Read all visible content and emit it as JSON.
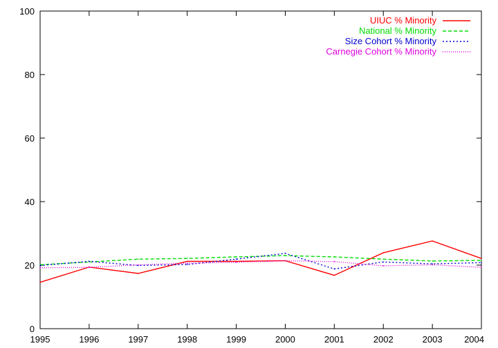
{
  "chart_data": {
    "type": "line",
    "title": "",
    "xlabel": "",
    "ylabel": "",
    "x": [
      1995,
      1996,
      1997,
      1998,
      1999,
      2000,
      2001,
      2002,
      2003,
      2004
    ],
    "xlim": [
      1995,
      2004
    ],
    "ylim": [
      0,
      100
    ],
    "x_ticks": [
      "1995",
      "1996",
      "1997",
      "1998",
      "1999",
      "2000",
      "2001",
      "2002",
      "2003",
      "2004"
    ],
    "y_ticks": [
      "0",
      "20",
      "40",
      "60",
      "80",
      "100"
    ],
    "grid": false,
    "legend_position": "top-right",
    "series": [
      {
        "name": "UIUC % Minority",
        "color": "#ff0000",
        "dash": "solid",
        "values": [
          14.6,
          19.4,
          17.4,
          21.2,
          21.2,
          21.4,
          16.8,
          23.9,
          27.6,
          22.1
        ]
      },
      {
        "name": "National % Minority",
        "color": "#00dd00",
        "dash": "dashed",
        "values": [
          20.1,
          21.0,
          21.9,
          22.1,
          22.6,
          23.0,
          22.6,
          21.9,
          21.3,
          21.5
        ]
      },
      {
        "name": "Size Cohort % Minority",
        "color": "#0000cc",
        "dash": "dotted",
        "values": [
          19.9,
          21.2,
          19.9,
          20.2,
          21.9,
          23.7,
          18.8,
          21.0,
          20.4,
          20.8
        ]
      },
      {
        "name": "Carnegie Cohort % Minority",
        "color": "#dd00dd",
        "dash": "finedot",
        "values": [
          19.2,
          19.3,
          20.1,
          20.6,
          20.9,
          21.4,
          21.1,
          19.8,
          20.1,
          19.3
        ]
      }
    ]
  }
}
